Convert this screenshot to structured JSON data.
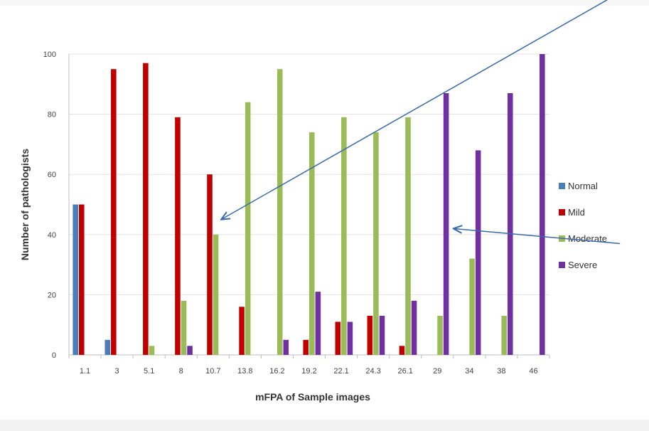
{
  "chart_data": {
    "type": "bar",
    "title": "",
    "xlabel": "mFPA of Sample images",
    "ylabel": "Number of pathologists",
    "ylim": [
      0,
      100
    ],
    "yticks": [
      0,
      20,
      40,
      60,
      80,
      100
    ],
    "grid": true,
    "legend_position": "right",
    "categories": [
      "1.1",
      "3",
      "5.1",
      "8",
      "10.7",
      "13.8",
      "16.2",
      "19.2",
      "22.1",
      "24.3",
      "26.1",
      "29",
      "34",
      "38",
      "46"
    ],
    "series": [
      {
        "name": "Normal",
        "color": "#4a7ebb",
        "values": [
          50,
          5,
          0,
          0,
          0,
          0,
          0,
          0,
          0,
          0,
          0,
          0,
          0,
          0,
          0
        ]
      },
      {
        "name": "Mild",
        "color": "#c00000",
        "values": [
          50,
          95,
          97,
          79,
          60,
          16,
          0,
          5,
          11,
          13,
          3,
          0,
          0,
          0,
          0
        ]
      },
      {
        "name": "Moderate",
        "color": "#9bbb59",
        "values": [
          0,
          0,
          3,
          18,
          40,
          84,
          95,
          74,
          79,
          74,
          79,
          13,
          32,
          13,
          0
        ]
      },
      {
        "name": "Severe",
        "color": "#7030a0",
        "values": [
          0,
          0,
          0,
          3,
          0,
          0,
          5,
          21,
          11,
          13,
          18,
          87,
          68,
          87,
          100
        ]
      }
    ],
    "annotations": [
      {
        "type": "arrow",
        "color": "#3a6aa8",
        "from": [
          16.8,
          118
        ],
        "to": [
          4.75,
          45
        ]
      },
      {
        "type": "arrow",
        "color": "#3a6aa8",
        "from": [
          17.2,
          37
        ],
        "to": [
          12.0,
          42
        ]
      }
    ]
  }
}
